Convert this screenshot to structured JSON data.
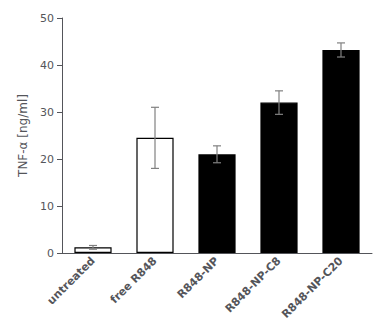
{
  "chart_data": {
    "type": "bar",
    "categories": [
      "untreated",
      "free R848",
      "R848-NP",
      "R848-NP-C8",
      "R848-NP-C20"
    ],
    "values": [
      1.2,
      24.5,
      21.0,
      32.0,
      43.2
    ],
    "errors": [
      0.4,
      6.5,
      1.8,
      2.5,
      1.5
    ],
    "colors": [
      "#ffffff",
      "#ffffff",
      "#000000",
      "#000000",
      "#000000"
    ],
    "ylabel": "TNF-α [ng/ml]",
    "ylim": [
      0,
      50
    ],
    "yticks": [
      0,
      10,
      20,
      30,
      40,
      50
    ],
    "grid": false
  }
}
